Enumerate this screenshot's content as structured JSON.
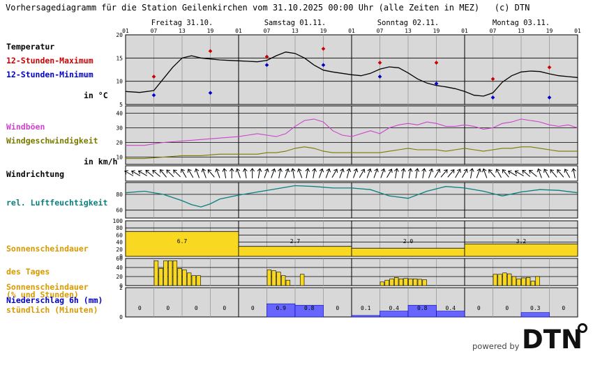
{
  "title": "Vorhersagediagramm für die Station Geilenkirchen vom 31.10.2025 00:00 Uhr (alle Zeiten in MEZ)   (c) DTN",
  "labels": {
    "temperatur": "Temperatur",
    "tmax": "12-Stunden-Maximum",
    "tmin": "12-Stunden-Minimum",
    "temp_unit": "in °C",
    "windboeen": "Windböen",
    "windgeschw": "Windgeschwindigkeit",
    "wind_unit": "in km/h",
    "windrichtung": "Windrichtung",
    "humidity": "rel. Luftfeuchtigkeit",
    "sun_day_1": "Sonnenscheindauer",
    "sun_day_2": "des Tages",
    "sun_day_3": "(% und Stunden)",
    "sun_hour_1": "Sonnenscheindauer",
    "sun_hour_2": "stündlich (Minuten)",
    "precip": "Niederschlag 6h (mm)"
  },
  "colors": {
    "panel_bg": "#d8d8d8",
    "temp": "#000000",
    "tmax": "#cc0000",
    "tmin": "#0000cc",
    "gust": "#cc44cc",
    "wind": "#7a7a00",
    "humidity": "#0b7f7f",
    "sun_label": "#d99a00",
    "sun_fill": "#f8d820",
    "precip_label": "#0000cc",
    "precip_fill": "#6666ff"
  },
  "footer": {
    "powered_by": "powered by",
    "logo_text": "DTN"
  },
  "chart_data": {
    "type": "line",
    "days": [
      "Freitag 31.10.",
      "Samstag 01.11.",
      "Sonntag 02.11.",
      "Montag 03.11."
    ],
    "hour_ticks": [
      "01",
      "07",
      "13",
      "19",
      "01",
      "07",
      "13",
      "19",
      "01",
      "07",
      "13",
      "19",
      "01",
      "07",
      "13",
      "19",
      "01"
    ],
    "temperature": {
      "ylim": [
        5,
        20
      ],
      "yticks": [
        5,
        10,
        15,
        20
      ],
      "x_hours": [
        0,
        3,
        6,
        8,
        10,
        12,
        14,
        16,
        18,
        20,
        22,
        24,
        26,
        28,
        30,
        32,
        34,
        36,
        38,
        40,
        42,
        44,
        46,
        48,
        50,
        52,
        54,
        56,
        58,
        60,
        62,
        64,
        66,
        68,
        70,
        72,
        74,
        76,
        78,
        80,
        82,
        84,
        86,
        88,
        90,
        92,
        94,
        96
      ],
      "values": [
        7.8,
        7.6,
        8.0,
        10.5,
        13.0,
        15.0,
        15.5,
        15.0,
        14.8,
        14.6,
        14.5,
        14.4,
        14.3,
        14.2,
        14.5,
        15.5,
        16.3,
        16.0,
        15.0,
        13.5,
        12.4,
        12.0,
        11.7,
        11.4,
        11.2,
        11.7,
        12.6,
        13.1,
        12.9,
        11.8,
        10.5,
        9.6,
        9.1,
        8.8,
        8.4,
        7.8,
        7.0,
        6.8,
        7.5,
        9.8,
        11.2,
        12.0,
        12.2,
        12.1,
        11.6,
        11.2,
        11.0,
        10.8
      ],
      "max_hours": [
        6,
        18,
        30,
        42,
        54,
        66,
        78,
        90
      ],
      "max_values": [
        11,
        16.5,
        15.3,
        17,
        14,
        14,
        10.5,
        13
      ],
      "min_hours": [
        6,
        18,
        30,
        42,
        54,
        66,
        78,
        90
      ],
      "min_values": [
        7,
        7.5,
        13.5,
        13.5,
        11,
        9.5,
        6.5,
        6.5
      ]
    },
    "wind": {
      "ylim": [
        5,
        45
      ],
      "yticks": [
        10,
        20,
        30,
        40
      ],
      "x_hours": [
        0,
        4,
        8,
        12,
        16,
        20,
        24,
        26,
        28,
        30,
        32,
        34,
        36,
        38,
        40,
        42,
        44,
        46,
        48,
        52,
        54,
        56,
        58,
        60,
        62,
        64,
        66,
        68,
        70,
        72,
        74,
        76,
        78,
        80,
        82,
        84,
        86,
        88,
        90,
        92,
        94,
        96
      ],
      "gust": [
        18,
        18,
        20,
        21,
        22,
        23,
        24,
        25,
        26,
        25,
        24,
        26,
        31,
        35,
        36,
        34,
        28,
        25,
        24,
        28,
        26,
        30,
        32,
        33,
        32,
        34,
        33,
        31,
        31,
        32,
        31,
        29,
        30,
        33,
        34,
        36,
        35,
        34,
        32,
        31,
        32,
        30
      ],
      "speed": [
        9,
        9,
        10,
        11,
        11,
        12,
        12,
        12,
        12,
        13,
        13,
        14,
        16,
        17,
        16,
        14,
        13,
        13,
        13,
        13,
        13,
        14,
        15,
        16,
        15,
        15,
        15,
        14,
        15,
        16,
        15,
        14,
        15,
        16,
        16,
        17,
        17,
        16,
        15,
        14,
        14,
        14
      ]
    },
    "wind_direction_deg": [
      300,
      300,
      300,
      310,
      310,
      320,
      315,
      315,
      330,
      330,
      340,
      340,
      320,
      340,
      350,
      0,
      340,
      350,
      0,
      10,
      20,
      20,
      10,
      20,
      350,
      340,
      10,
      10,
      20,
      20,
      30,
      20,
      15,
      20,
      30,
      20,
      20,
      20,
      30,
      10,
      10,
      10,
      10,
      10,
      20,
      30,
      40,
      40,
      30,
      30,
      10,
      20,
      340,
      320,
      330,
      320,
      300,
      300,
      310,
      310,
      340,
      330,
      320,
      320,
      330,
      350
    ],
    "humidity": {
      "ylim": [
        50,
        95
      ],
      "yticks": [
        60,
        80
      ],
      "x_hours": [
        0,
        4,
        8,
        12,
        14,
        16,
        18,
        20,
        24,
        28,
        32,
        36,
        40,
        44,
        48,
        52,
        56,
        60,
        64,
        68,
        72,
        76,
        80,
        84,
        88,
        92,
        96
      ],
      "values": [
        82,
        84,
        80,
        72,
        67,
        64,
        68,
        74,
        79,
        83,
        87,
        91,
        90,
        88,
        88,
        86,
        78,
        75,
        84,
        90,
        88,
        84,
        78,
        83,
        86,
        85,
        82
      ]
    },
    "sunshine_daily": {
      "ylim": [
        0,
        100
      ],
      "yticks": [
        0,
        20,
        40,
        60,
        80,
        100
      ],
      "percent": [
        70,
        28,
        23,
        35
      ],
      "hours": [
        "6.7",
        "2.7",
        "2.0",
        "3.2"
      ]
    },
    "sunshine_hourly_minutes": {
      "ylim": [
        0,
        60
      ],
      "yticks": [
        0,
        20,
        40,
        60
      ],
      "hours": [
        7,
        8,
        9,
        10,
        11,
        12,
        13,
        14,
        15,
        16,
        17,
        31,
        32,
        33,
        34,
        35,
        38,
        55,
        56,
        57,
        58,
        59,
        60,
        61,
        62,
        63,
        64,
        79,
        80,
        81,
        82,
        83,
        84,
        85,
        86,
        87,
        88
      ],
      "minutes": [
        55,
        38,
        55,
        55,
        55,
        38,
        35,
        28,
        22,
        22,
        0,
        35,
        33,
        30,
        22,
        12,
        25,
        8,
        12,
        15,
        18,
        15,
        16,
        15,
        15,
        14,
        13,
        25,
        25,
        28,
        26,
        20,
        15,
        17,
        18,
        10,
        20
      ]
    },
    "precip_6h": {
      "ylim": [
        0,
        2
      ],
      "yticks": [
        0,
        2
      ],
      "values": [
        0,
        0,
        0,
        0,
        0,
        0.9,
        0.8,
        0,
        0.1,
        0.4,
        0.8,
        0.4,
        0,
        0,
        0.3,
        0
      ],
      "labels": [
        "0",
        "0",
        "0",
        "0",
        "0",
        "0.9",
        "0.8",
        "0",
        "0.1",
        "0.4",
        "0.8",
        "0.4",
        "0",
        "0",
        "0.3",
        "0"
      ]
    }
  }
}
